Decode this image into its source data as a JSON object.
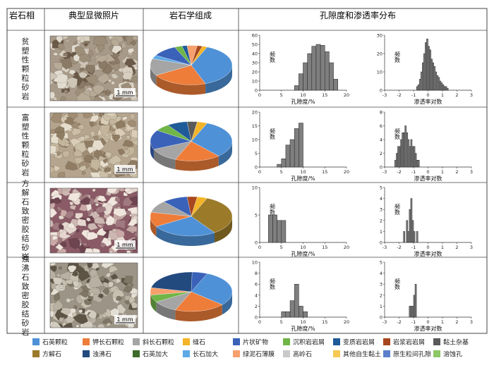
{
  "headers": {
    "facies": "岩石相",
    "micro": "典型显微照片",
    "composition": "岩石学组成",
    "distribution": "孔隙度和渗透率分布"
  },
  "scale_label": "1 mm",
  "rows": [
    {
      "facies_name": "贫塑性颗粒砂岩",
      "photo": {
        "base": "#a89a88",
        "grains": [
          "#cfc6b8",
          "#b7ab97",
          "#8a7a66",
          "#e2dcd0",
          "#6b5a48",
          "#d8cfc0",
          "#9d8e7a"
        ]
      },
      "pie": [
        {
          "name": "石英颗粒",
          "value": 38
        },
        {
          "name": "钾长石颗粒",
          "value": 22
        },
        {
          "name": "斜长石颗粒",
          "value": 14
        },
        {
          "name": "长石加大",
          "value": 3
        },
        {
          "name": "片状矿物",
          "value": 10
        },
        {
          "name": "沉积岩岩屑",
          "value": 3
        },
        {
          "name": "变质岩岩屑",
          "value": 2
        },
        {
          "name": "绿泥石薄膜",
          "value": 4
        },
        {
          "name": "岩浆岩岩屑",
          "value": 2
        },
        {
          "name": "缝石",
          "value": 2
        }
      ],
      "porosity": {
        "xlabel": "孔隙度/%",
        "ylabel": "频数",
        "ylim": [
          0,
          60
        ],
        "yticks": [
          0,
          10,
          20,
          30,
          40,
          50,
          60
        ],
        "xlim": [
          0,
          20
        ],
        "xticks": [
          0,
          5,
          10,
          15,
          20
        ],
        "bin_width": 1,
        "bins": [
          8,
          9,
          10,
          11,
          12,
          13,
          14,
          15,
          16,
          17
        ],
        "counts": [
          5,
          18,
          30,
          40,
          48,
          50,
          49,
          42,
          30,
          12
        ]
      },
      "permeability": {
        "xlabel": "渗透率对数",
        "ylabel": "频数",
        "ylim": [
          0,
          30
        ],
        "yticks": [
          0,
          10,
          20,
          30
        ],
        "xlim": [
          -3,
          3
        ],
        "xticks": [
          -3,
          -2,
          -1,
          0,
          1,
          2,
          3
        ],
        "bin_width": 0.1,
        "bins": [
          -0.8,
          -0.7,
          -0.6,
          -0.5,
          -0.4,
          -0.3,
          -0.2,
          -0.1,
          0,
          0.1,
          0.2,
          0.3,
          0.4,
          0.5,
          0.6,
          0.7,
          0.8,
          0.9,
          1.0,
          1.1,
          1.2,
          1.3
        ],
        "counts": [
          2,
          3,
          6,
          10,
          15,
          20,
          26,
          28,
          24,
          22,
          17,
          15,
          13,
          10,
          8,
          7,
          5,
          4,
          3,
          2,
          2,
          1
        ]
      }
    },
    {
      "facies_name": "富塑性颗粒砂岩",
      "photo": {
        "base": "#b5a58e",
        "grains": [
          "#d9cdb8",
          "#c4b59d",
          "#a08d73",
          "#e6ddcc",
          "#8f7c63",
          "#cbbfa8"
        ]
      },
      "pie": [
        {
          "name": "石英颗粒",
          "value": 32
        },
        {
          "name": "钾长石颗粒",
          "value": 18
        },
        {
          "name": "斜长石颗粒",
          "value": 12
        },
        {
          "name": "片状矿物",
          "value": 16
        },
        {
          "name": "沉积岩岩屑",
          "value": 6
        },
        {
          "name": "变质岩岩屑",
          "value": 8
        },
        {
          "name": "黏土杂基",
          "value": 4
        },
        {
          "name": "缝石",
          "value": 4
        }
      ],
      "porosity": {
        "xlabel": "孔隙度/%",
        "ylabel": "频数",
        "ylim": [
          0,
          20
        ],
        "yticks": [
          0,
          5,
          10,
          15,
          20
        ],
        "xlim": [
          0,
          20
        ],
        "xticks": [
          0,
          5,
          10,
          15,
          20
        ],
        "bin_width": 1,
        "bins": [
          4,
          5,
          6,
          7,
          8,
          9
        ],
        "counts": [
          1,
          3,
          8,
          10,
          14,
          16
        ]
      },
      "permeability": {
        "xlabel": "渗透率对数",
        "ylabel": "频数",
        "ylim": [
          0,
          8
        ],
        "yticks": [
          0,
          2,
          4,
          6,
          8
        ],
        "xlim": [
          -3,
          3
        ],
        "xticks": [
          -3,
          -2,
          -1,
          0,
          1,
          2,
          3
        ],
        "bin_width": 0.1,
        "bins": [
          -2.3,
          -2.2,
          -2.1,
          -2.0,
          -1.9,
          -1.8,
          -1.7,
          -1.6,
          -1.5,
          -1.4,
          -1.3,
          -1.2,
          -1.1,
          -1.0,
          -0.9,
          -0.8,
          -0.7
        ],
        "counts": [
          1,
          2,
          3,
          3,
          4,
          5,
          5,
          6,
          5,
          4,
          3,
          4,
          3,
          3,
          2,
          1,
          1
        ]
      }
    },
    {
      "facies_name": "方解石致密胶结砂岩",
      "photo": {
        "base": "#8a5a66",
        "grains": [
          "#e6d8d0",
          "#cdb7b2",
          "#a07a80",
          "#f0e6de",
          "#6d4450",
          "#c9a8a6"
        ]
      },
      "pie": [
        {
          "name": "方解石",
          "value": 34
        },
        {
          "name": "石英颗粒",
          "value": 26
        },
        {
          "name": "钾长石颗粒",
          "value": 12
        },
        {
          "name": "斜长石颗粒",
          "value": 10
        },
        {
          "name": "片状矿物",
          "value": 10
        },
        {
          "name": "岩浆岩岩屑",
          "value": 4
        },
        {
          "name": "缝石",
          "value": 4
        }
      ],
      "porosity": {
        "xlabel": "孔隙度/%",
        "ylabel": "频数",
        "ylim": [
          0,
          10
        ],
        "yticks": [
          0,
          5,
          10
        ],
        "xlim": [
          0,
          20
        ],
        "xticks": [
          0,
          5,
          10,
          15,
          20
        ],
        "bin_width": 1,
        "bins": [
          2,
          3,
          4,
          5
        ],
        "counts": [
          5,
          5,
          4,
          4
        ]
      },
      "permeability": {
        "xlabel": "渗透率对数",
        "ylabel": "频数",
        "ylim": [
          0,
          5
        ],
        "yticks": [
          0,
          1,
          2,
          3,
          4,
          5
        ],
        "xlim": [
          -3,
          3
        ],
        "xticks": [
          -3,
          -2,
          -1,
          0,
          1,
          2,
          3
        ],
        "bin_width": 0.1,
        "bins": [
          -1.7,
          -1.5,
          -1.4,
          -1.3,
          -1.2,
          -1.1,
          -1.0,
          -0.8
        ],
        "counts": [
          1,
          2,
          1,
          3,
          4,
          2,
          1,
          1
        ]
      }
    },
    {
      "facies_name": "浊沸石致密胶结砂岩",
      "photo": {
        "base": "#9c9486",
        "grains": [
          "#d2ccc0",
          "#b8b0a2",
          "#807666",
          "#e4dfd4",
          "#5d5446",
          "#c7bfb0"
        ]
      },
      "pie": [
        {
          "name": "石英颗粒",
          "value": 30
        },
        {
          "name": "钾长石颗粒",
          "value": 20
        },
        {
          "name": "斜长石颗粒",
          "value": 10
        },
        {
          "name": "沉积岩岩屑",
          "value": 6
        },
        {
          "name": "绿泥石薄膜",
          "value": 6
        },
        {
          "name": "浊沸石",
          "value": 22
        },
        {
          "name": "片状矿物",
          "value": 6
        }
      ],
      "porosity": {
        "xlabel": "孔隙度/%",
        "ylabel": "频数",
        "ylim": [
          0,
          10
        ],
        "yticks": [
          0,
          2,
          4,
          6,
          8,
          10
        ],
        "xlim": [
          0,
          20
        ],
        "xticks": [
          0,
          5,
          10,
          15,
          20
        ],
        "bin_width": 1,
        "bins": [
          5,
          6,
          7,
          8,
          9,
          10
        ],
        "counts": [
          1,
          1,
          3,
          6,
          2,
          1
        ]
      },
      "permeability": {
        "xlabel": "渗透率对数",
        "ylabel": "频数",
        "ylim": [
          0,
          5
        ],
        "yticks": [
          0,
          1,
          2,
          3,
          4,
          5
        ],
        "xlim": [
          -3,
          3
        ],
        "xticks": [
          -3,
          -2,
          -1,
          0,
          1,
          2,
          3
        ],
        "bin_width": 0.1,
        "bins": [
          -1.3,
          -1.2,
          -1.1,
          -1.0,
          -0.9
        ],
        "counts": [
          1,
          1,
          1,
          2,
          3
        ]
      }
    }
  ],
  "legend": [
    {
      "name": "石英颗粒",
      "color": "#4f91d6"
    },
    {
      "name": "钾长石颗粒",
      "color": "#ee7d3a"
    },
    {
      "name": "斜长石颗粒",
      "color": "#a5a5a5"
    },
    {
      "name": "缝石",
      "color": "#f3b428"
    },
    {
      "name": "片状矿物",
      "color": "#3a62b8"
    },
    {
      "name": "沉积岩岩屑",
      "color": "#6fb547"
    },
    {
      "name": "变质岩岩屑",
      "color": "#1f5a99"
    },
    {
      "name": "岩浆岩岩屑",
      "color": "#a8471f"
    },
    {
      "name": "黏土杂基",
      "color": "#5a5a5a"
    },
    {
      "name": "方解石",
      "color": "#9b7b2a"
    },
    {
      "name": "浊沸石",
      "color": "#234a7f"
    },
    {
      "name": "石英加大",
      "color": "#3d6d2a"
    },
    {
      "name": "长石加大",
      "color": "#5fa9e6"
    },
    {
      "name": "绿泥石薄膜",
      "color": "#f7a06e"
    },
    {
      "name": "高岭石",
      "color": "#c9c9c9"
    },
    {
      "name": "其他自生黏土",
      "color": "#f6c955"
    },
    {
      "name": "原生粒间孔隙",
      "color": "#5b7fcb"
    },
    {
      "name": "溶蚀孔",
      "color": "#8cc865"
    }
  ]
}
